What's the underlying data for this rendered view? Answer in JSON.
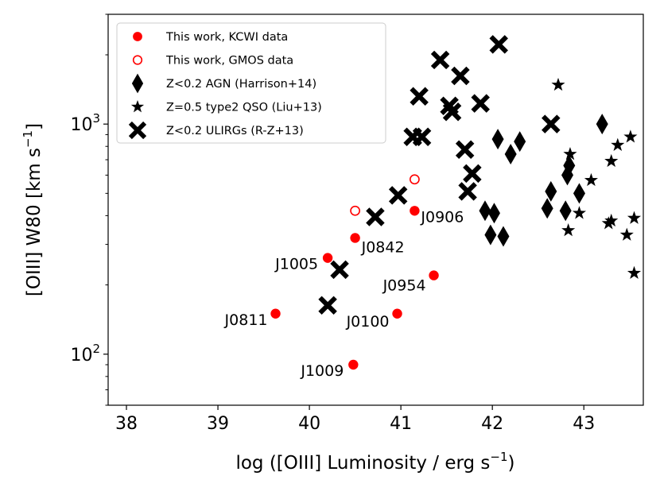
{
  "chart_data": {
    "type": "scatter",
    "title": "",
    "xlabel": "log ([OIII] Luminosity / erg s",
    "xlabel_sup": "−1",
    "xlabel_tail": ")",
    "ylabel": "[OIII] W80 [km s",
    "ylabel_sup": "−1",
    "ylabel_tail": "]",
    "xlim": [
      37.8,
      43.65
    ],
    "ylim": [
      60,
      3000
    ],
    "yscale": "log",
    "xticks": [
      38,
      39,
      40,
      41,
      42,
      43
    ],
    "xtick_labels": [
      "38",
      "39",
      "40",
      "41",
      "42",
      "43"
    ],
    "yticks": [
      {
        "value": 100,
        "base": "10",
        "exp": "2"
      },
      {
        "value": 1000,
        "base": "10",
        "exp": "3"
      }
    ],
    "legend_position": "top-left",
    "series": [
      {
        "name": "This work, KCWI data",
        "marker": "circle-filled",
        "color": "#ff0000",
        "points": [
          {
            "x": 39.63,
            "y": 150,
            "label": "J0811"
          },
          {
            "x": 40.48,
            "y": 90,
            "label": "J1009"
          },
          {
            "x": 40.2,
            "y": 262,
            "label": "J1005"
          },
          {
            "x": 40.5,
            "y": 320,
            "label": "J0842"
          },
          {
            "x": 40.96,
            "y": 150,
            "label": "J0100"
          },
          {
            "x": 41.15,
            "y": 420,
            "label": "J0906"
          },
          {
            "x": 41.36,
            "y": 220,
            "label": "J0954"
          }
        ]
      },
      {
        "name": "This work, GMOS data",
        "marker": "circle-open",
        "color": "#ff0000",
        "points": [
          {
            "x": 40.5,
            "y": 420
          },
          {
            "x": 41.15,
            "y": 575
          }
        ]
      },
      {
        "name": "Z<0.2 AGN (Harrison+14)",
        "marker": "diamond",
        "color": "#000000",
        "points": [
          {
            "x": 41.92,
            "y": 420
          },
          {
            "x": 41.98,
            "y": 330
          },
          {
            "x": 42.02,
            "y": 410
          },
          {
            "x": 42.06,
            "y": 860
          },
          {
            "x": 42.12,
            "y": 325
          },
          {
            "x": 42.2,
            "y": 740
          },
          {
            "x": 42.3,
            "y": 840
          },
          {
            "x": 42.6,
            "y": 430
          },
          {
            "x": 42.64,
            "y": 510
          },
          {
            "x": 42.8,
            "y": 420
          },
          {
            "x": 42.82,
            "y": 600
          },
          {
            "x": 42.84,
            "y": 660
          },
          {
            "x": 42.95,
            "y": 500
          },
          {
            "x": 43.2,
            "y": 1000
          }
        ]
      },
      {
        "name": "Z=0.5 type2 QSO (Liu+13)",
        "marker": "star",
        "color": "#000000",
        "points": [
          {
            "x": 42.72,
            "y": 1480
          },
          {
            "x": 42.85,
            "y": 740
          },
          {
            "x": 42.95,
            "y": 410
          },
          {
            "x": 43.08,
            "y": 570
          },
          {
            "x": 42.83,
            "y": 345
          },
          {
            "x": 43.27,
            "y": 370
          },
          {
            "x": 43.3,
            "y": 380
          },
          {
            "x": 43.3,
            "y": 690
          },
          {
            "x": 43.37,
            "y": 810
          },
          {
            "x": 43.47,
            "y": 330
          },
          {
            "x": 43.51,
            "y": 880
          },
          {
            "x": 43.55,
            "y": 390
          },
          {
            "x": 43.55,
            "y": 225
          }
        ]
      },
      {
        "name": "Z<0.2 ULIRGs (R-Z+13)",
        "marker": "x-thick",
        "color": "#000000",
        "points": [
          {
            "x": 40.2,
            "y": 163
          },
          {
            "x": 40.33,
            "y": 233
          },
          {
            "x": 40.72,
            "y": 395
          },
          {
            "x": 40.97,
            "y": 490
          },
          {
            "x": 41.13,
            "y": 880
          },
          {
            "x": 41.2,
            "y": 1320
          },
          {
            "x": 41.23,
            "y": 880
          },
          {
            "x": 41.43,
            "y": 1900
          },
          {
            "x": 41.53,
            "y": 1200
          },
          {
            "x": 41.56,
            "y": 1130
          },
          {
            "x": 41.65,
            "y": 1620
          },
          {
            "x": 41.7,
            "y": 775
          },
          {
            "x": 41.73,
            "y": 510
          },
          {
            "x": 41.78,
            "y": 610
          },
          {
            "x": 41.87,
            "y": 1230
          },
          {
            "x": 42.07,
            "y": 2220
          },
          {
            "x": 42.64,
            "y": 1000
          }
        ]
      }
    ]
  }
}
